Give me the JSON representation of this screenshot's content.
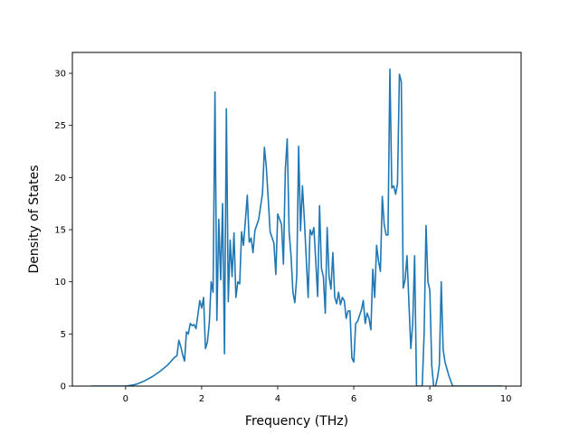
{
  "chart_data": {
    "type": "line",
    "title": "",
    "xlabel": "Frequency (THz)",
    "ylabel": "Density of States",
    "xlim": [
      -1.4,
      10.4
    ],
    "ylim": [
      0,
      32
    ],
    "xticks": [
      0,
      2,
      4,
      6,
      8,
      10
    ],
    "yticks": [
      0,
      5,
      10,
      15,
      20,
      25,
      30
    ],
    "grid": false,
    "legend": "none",
    "series": [
      {
        "color": "#1f77b4",
        "points": [
          [
            -0.9,
            0
          ],
          [
            0.0,
            0
          ],
          [
            0.1,
            0.05
          ],
          [
            0.2,
            0.1
          ],
          [
            0.3,
            0.2
          ],
          [
            0.4,
            0.35
          ],
          [
            0.5,
            0.5
          ],
          [
            0.6,
            0.7
          ],
          [
            0.7,
            0.9
          ],
          [
            0.8,
            1.15
          ],
          [
            0.9,
            1.4
          ],
          [
            1.0,
            1.7
          ],
          [
            1.1,
            2.0
          ],
          [
            1.2,
            2.4
          ],
          [
            1.3,
            2.8
          ],
          [
            1.35,
            2.9
          ],
          [
            1.4,
            4.4
          ],
          [
            1.45,
            3.8
          ],
          [
            1.5,
            3.0
          ],
          [
            1.55,
            2.4
          ],
          [
            1.6,
            5.2
          ],
          [
            1.65,
            5.0
          ],
          [
            1.7,
            6.0
          ],
          [
            1.75,
            5.8
          ],
          [
            1.8,
            5.9
          ],
          [
            1.85,
            5.5
          ],
          [
            1.9,
            6.8
          ],
          [
            1.95,
            8.2
          ],
          [
            2.0,
            7.5
          ],
          [
            2.05,
            8.5
          ],
          [
            2.1,
            3.6
          ],
          [
            2.15,
            4.2
          ],
          [
            2.2,
            6.0
          ],
          [
            2.25,
            10.0
          ],
          [
            2.3,
            9.0
          ],
          [
            2.35,
            28.2
          ],
          [
            2.4,
            6.3
          ],
          [
            2.45,
            16.0
          ],
          [
            2.5,
            10.2
          ],
          [
            2.55,
            17.5
          ],
          [
            2.6,
            3.1
          ],
          [
            2.65,
            26.6
          ],
          [
            2.7,
            8.1
          ],
          [
            2.75,
            14.0
          ],
          [
            2.8,
            10.5
          ],
          [
            2.85,
            14.7
          ],
          [
            2.9,
            8.5
          ],
          [
            2.95,
            10.0
          ],
          [
            3.0,
            9.8
          ],
          [
            3.05,
            14.8
          ],
          [
            3.1,
            13.5
          ],
          [
            3.2,
            18.3
          ],
          [
            3.25,
            13.8
          ],
          [
            3.3,
            14.2
          ],
          [
            3.35,
            12.8
          ],
          [
            3.4,
            14.9
          ],
          [
            3.5,
            16.0
          ],
          [
            3.6,
            18.5
          ],
          [
            3.65,
            22.9
          ],
          [
            3.7,
            21.0
          ],
          [
            3.75,
            18.0
          ],
          [
            3.8,
            14.8
          ],
          [
            3.9,
            13.7
          ],
          [
            3.95,
            10.7
          ],
          [
            4.0,
            16.5
          ],
          [
            4.1,
            15.5
          ],
          [
            4.15,
            11.7
          ],
          [
            4.2,
            20.8
          ],
          [
            4.25,
            23.7
          ],
          [
            4.3,
            14.8
          ],
          [
            4.35,
            12.5
          ],
          [
            4.4,
            9.0
          ],
          [
            4.45,
            8.0
          ],
          [
            4.5,
            10.5
          ],
          [
            4.55,
            23.0
          ],
          [
            4.6,
            14.9
          ],
          [
            4.65,
            19.2
          ],
          [
            4.7,
            16.0
          ],
          [
            4.8,
            8.5
          ],
          [
            4.85,
            15.0
          ],
          [
            4.9,
            14.5
          ],
          [
            4.95,
            15.2
          ],
          [
            5.0,
            12.0
          ],
          [
            5.05,
            8.6
          ],
          [
            5.1,
            17.3
          ],
          [
            5.15,
            11.3
          ],
          [
            5.2,
            10.5
          ],
          [
            5.25,
            7.0
          ],
          [
            5.3,
            15.2
          ],
          [
            5.35,
            10.5
          ],
          [
            5.4,
            9.3
          ],
          [
            5.45,
            12.8
          ],
          [
            5.5,
            8.5
          ],
          [
            5.55,
            7.9
          ],
          [
            5.6,
            9.0
          ],
          [
            5.65,
            7.8
          ],
          [
            5.7,
            8.5
          ],
          [
            5.75,
            8.2
          ],
          [
            5.8,
            6.5
          ],
          [
            5.85,
            7.2
          ],
          [
            5.9,
            7.2
          ],
          [
            5.95,
            2.7
          ],
          [
            6.0,
            2.3
          ],
          [
            6.05,
            6.0
          ],
          [
            6.1,
            6.2
          ],
          [
            6.2,
            7.3
          ],
          [
            6.25,
            8.2
          ],
          [
            6.3,
            6.0
          ],
          [
            6.35,
            7.0
          ],
          [
            6.4,
            6.5
          ],
          [
            6.45,
            5.4
          ],
          [
            6.5,
            11.2
          ],
          [
            6.55,
            8.5
          ],
          [
            6.6,
            13.5
          ],
          [
            6.65,
            12.0
          ],
          [
            6.7,
            11.0
          ],
          [
            6.75,
            18.2
          ],
          [
            6.8,
            15.5
          ],
          [
            6.85,
            14.5
          ],
          [
            6.9,
            14.5
          ],
          [
            6.95,
            30.4
          ],
          [
            7.0,
            19.0
          ],
          [
            7.05,
            19.2
          ],
          [
            7.1,
            18.4
          ],
          [
            7.15,
            19.4
          ],
          [
            7.2,
            29.9
          ],
          [
            7.25,
            29.2
          ],
          [
            7.3,
            9.4
          ],
          [
            7.35,
            10.2
          ],
          [
            7.4,
            12.5
          ],
          [
            7.45,
            8.0
          ],
          [
            7.5,
            3.6
          ],
          [
            7.55,
            6.0
          ],
          [
            7.6,
            12.5
          ],
          [
            7.65,
            0
          ],
          [
            7.7,
            0
          ],
          [
            7.75,
            0
          ],
          [
            7.8,
            0
          ],
          [
            7.85,
            5.0
          ],
          [
            7.9,
            15.4
          ],
          [
            7.95,
            10.0
          ],
          [
            8.0,
            9.2
          ],
          [
            8.05,
            2.0
          ],
          [
            8.1,
            0
          ],
          [
            8.15,
            0
          ],
          [
            8.2,
            0.8
          ],
          [
            8.25,
            2.0
          ],
          [
            8.3,
            10.0
          ],
          [
            8.35,
            3.5
          ],
          [
            8.4,
            2.3
          ],
          [
            8.5,
            1.0
          ],
          [
            8.6,
            0
          ],
          [
            9.9,
            0
          ]
        ]
      }
    ]
  }
}
